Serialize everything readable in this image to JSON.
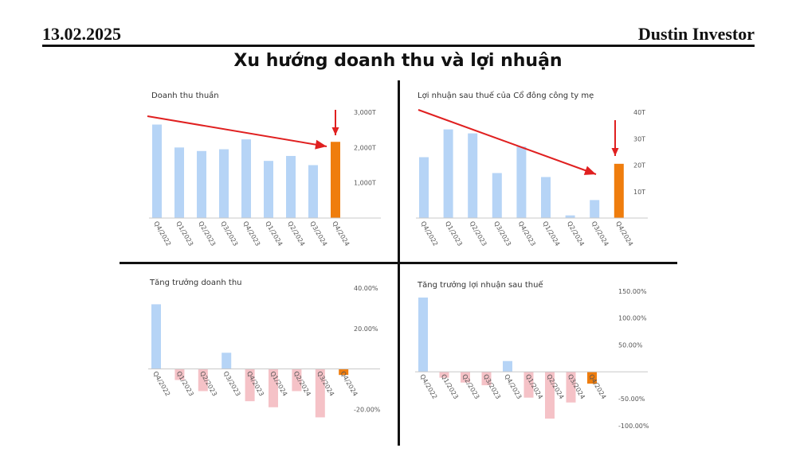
{
  "header": {
    "date": "13.02.2025",
    "author": "Dustin Investor"
  },
  "title": "Xu hướng doanh thu và lợi nhuận",
  "colors": {
    "normal": "#b6d4f6",
    "highlight": "#ef7d0d",
    "negative": "#f5c2c7",
    "arrow": "#e02020"
  },
  "chart_data": [
    {
      "type": "bar",
      "title": "Doanh thu thuần",
      "categories": [
        "Q4/2022",
        "Q1/2023",
        "Q2/2023",
        "Q3/2023",
        "Q4/2023",
        "Q1/2024",
        "Q2/2024",
        "Q3/2024",
        "Q4/2024"
      ],
      "values": [
        2650,
        2000,
        1900,
        1950,
        2230,
        1620,
        1760,
        1500,
        2160
      ],
      "ylim": [
        0,
        3000
      ],
      "yticks": [
        1000,
        2000,
        3000
      ],
      "ytick_labels": [
        "1,000T",
        "2,000T",
        "3,000T"
      ],
      "highlight_index": 8
    },
    {
      "type": "bar",
      "title": "Lợi nhuận sau thuế của Cổ đông công ty mẹ",
      "categories": [
        "Q4/2022",
        "Q1/2023",
        "Q2/2023",
        "Q3/2023",
        "Q4/2023",
        "Q1/2024",
        "Q2/2024",
        "Q3/2024",
        "Q4/2024"
      ],
      "values": [
        23,
        33.5,
        32,
        17,
        27,
        15.5,
        1,
        6.8,
        20.5
      ],
      "ylim": [
        0,
        40
      ],
      "yticks": [
        10,
        20,
        30,
        40
      ],
      "ytick_labels": [
        "10T",
        "20T",
        "30T",
        "40T"
      ],
      "highlight_index": 8
    },
    {
      "type": "bar",
      "title": "Tăng trưởng doanh thu",
      "categories": [
        "Q4/2022",
        "Q1/2023",
        "Q2/2023",
        "Q3/2023",
        "Q4/2023",
        "Q1/2024",
        "Q2/2024",
        "Q3/2024",
        "Q4/2024"
      ],
      "values": [
        32,
        -5.5,
        -11,
        8,
        -16,
        -19,
        -11,
        -24,
        -3
      ],
      "ylim": [
        -25,
        42
      ],
      "yticks": [
        -20,
        20,
        40
      ],
      "ytick_labels": [
        "-20.00%",
        "20.00%",
        "40.00%"
      ],
      "highlight_index": 8
    },
    {
      "type": "bar",
      "title": "Tăng trưởng lợi nhuận sau thuế",
      "categories": [
        "Q4/2022",
        "Q1/2023",
        "Q2/2023",
        "Q3/2023",
        "Q4/2023",
        "Q1/2024",
        "Q2/2024",
        "Q3/2024",
        "Q4/2024"
      ],
      "values": [
        138,
        -11,
        -20,
        -25,
        20,
        -48,
        -87,
        -57,
        -22
      ],
      "ylim": [
        -115,
        160
      ],
      "yticks": [
        -100,
        -50,
        50,
        100,
        150
      ],
      "ytick_labels": [
        "-100.00%",
        "-50.00%",
        "50.00%",
        "100.00%",
        "150.00%"
      ],
      "highlight_index": 8
    }
  ]
}
